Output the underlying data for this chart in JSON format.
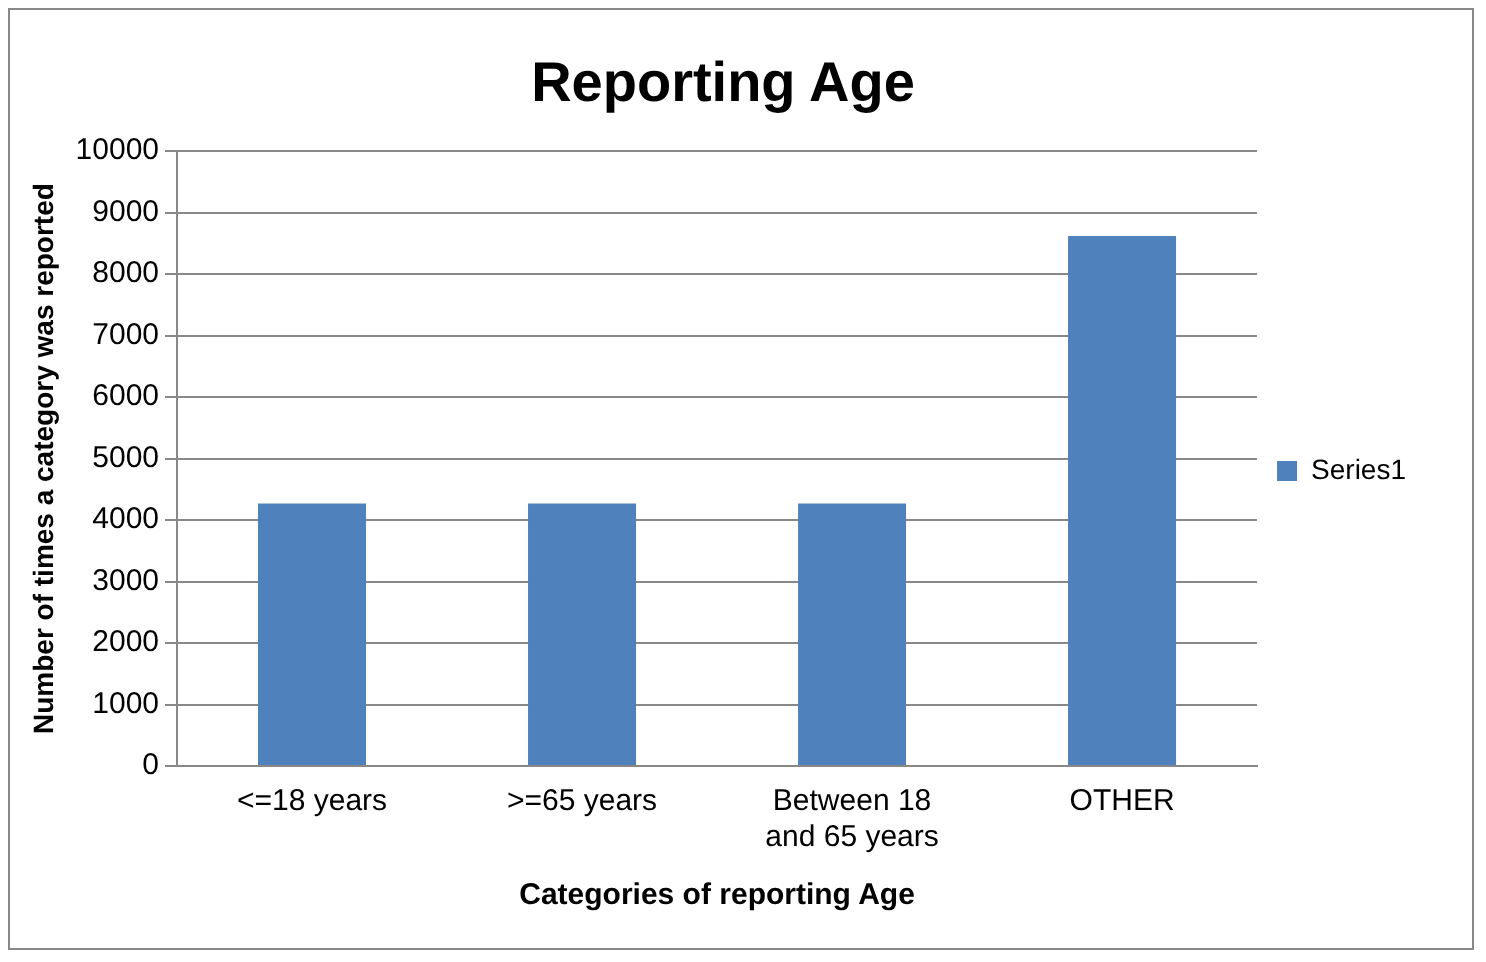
{
  "chart_data": {
    "type": "bar",
    "title": "Reporting Age",
    "xlabel": "Categories of reporting Age",
    "ylabel": "Number of times a category was reported",
    "categories": [
      "<=18 years",
      ">=65 years",
      "Between 18 and 65 years",
      "OTHER"
    ],
    "series": [
      {
        "name": "Series1",
        "color": "#4f81bd",
        "values": [
          4270,
          4270,
          4270,
          8620
        ]
      }
    ],
    "ylim": [
      0,
      10000
    ],
    "yticks": [
      0,
      1000,
      2000,
      3000,
      4000,
      5000,
      6000,
      7000,
      8000,
      9000,
      10000
    ],
    "grid": "y",
    "legend": "right"
  }
}
